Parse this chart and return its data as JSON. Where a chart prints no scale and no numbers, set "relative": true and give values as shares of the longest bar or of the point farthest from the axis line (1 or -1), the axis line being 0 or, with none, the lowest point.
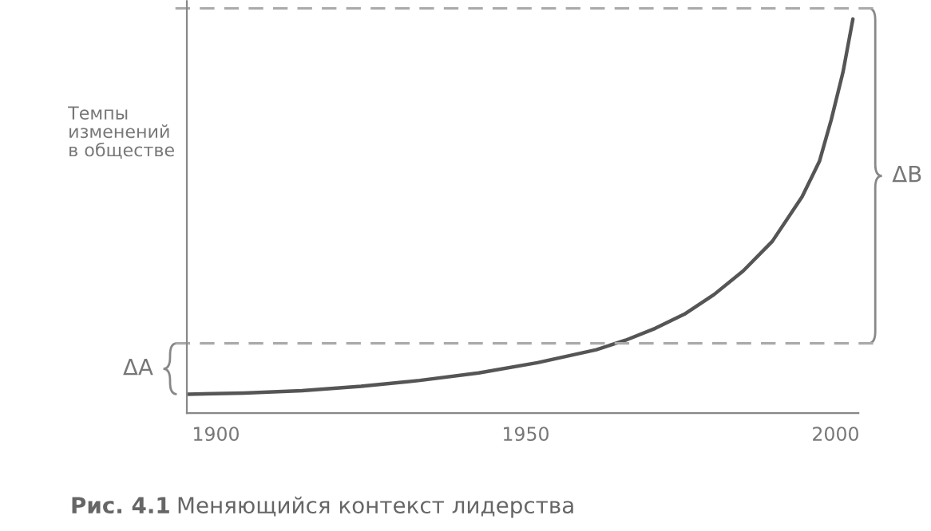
{
  "chart_data": {
    "type": "line",
    "relative": true,
    "ylabel": "Темпы\nизменений\nв обществе",
    "x": [
      1895.3,
      1904.5,
      1913.9,
      1923.4,
      1932.9,
      1942.4,
      1951.9,
      1961.4,
      1966.1,
      1970.9,
      1975.6,
      1980.4,
      1985.1,
      1989.8,
      1994.6,
      1997.4,
      1999.3,
      2001.2,
      2002.8
    ],
    "series": [
      {
        "color": "#555555",
        "values": [
          0.048,
          0.051,
          0.057,
          0.068,
          0.083,
          0.102,
          0.128,
          0.161,
          0.185,
          0.215,
          0.251,
          0.301,
          0.361,
          0.436,
          0.549,
          0.639,
          0.744,
          0.865,
          1
        ]
      }
    ],
    "xlim": [
      1895.3,
      2003.7
    ],
    "xticks": [
      1900,
      1950,
      2000
    ],
    "ref_lines": [
      {
        "axis": "y",
        "value": 0.177,
        "color": "#aaaaaa",
        "line_style": "dashed"
      },
      {
        "axis": "y",
        "value": 1.027,
        "color": "#aaaaaa",
        "line_style": "dashed"
      }
    ],
    "annotations": [
      "ΔA",
      "ΔB",
      "Рис. 4.1",
      "Меняющийся контекст лидерства"
    ],
    "grid": false,
    "legend": false,
    "marker": "none",
    "line_style": "solid"
  }
}
